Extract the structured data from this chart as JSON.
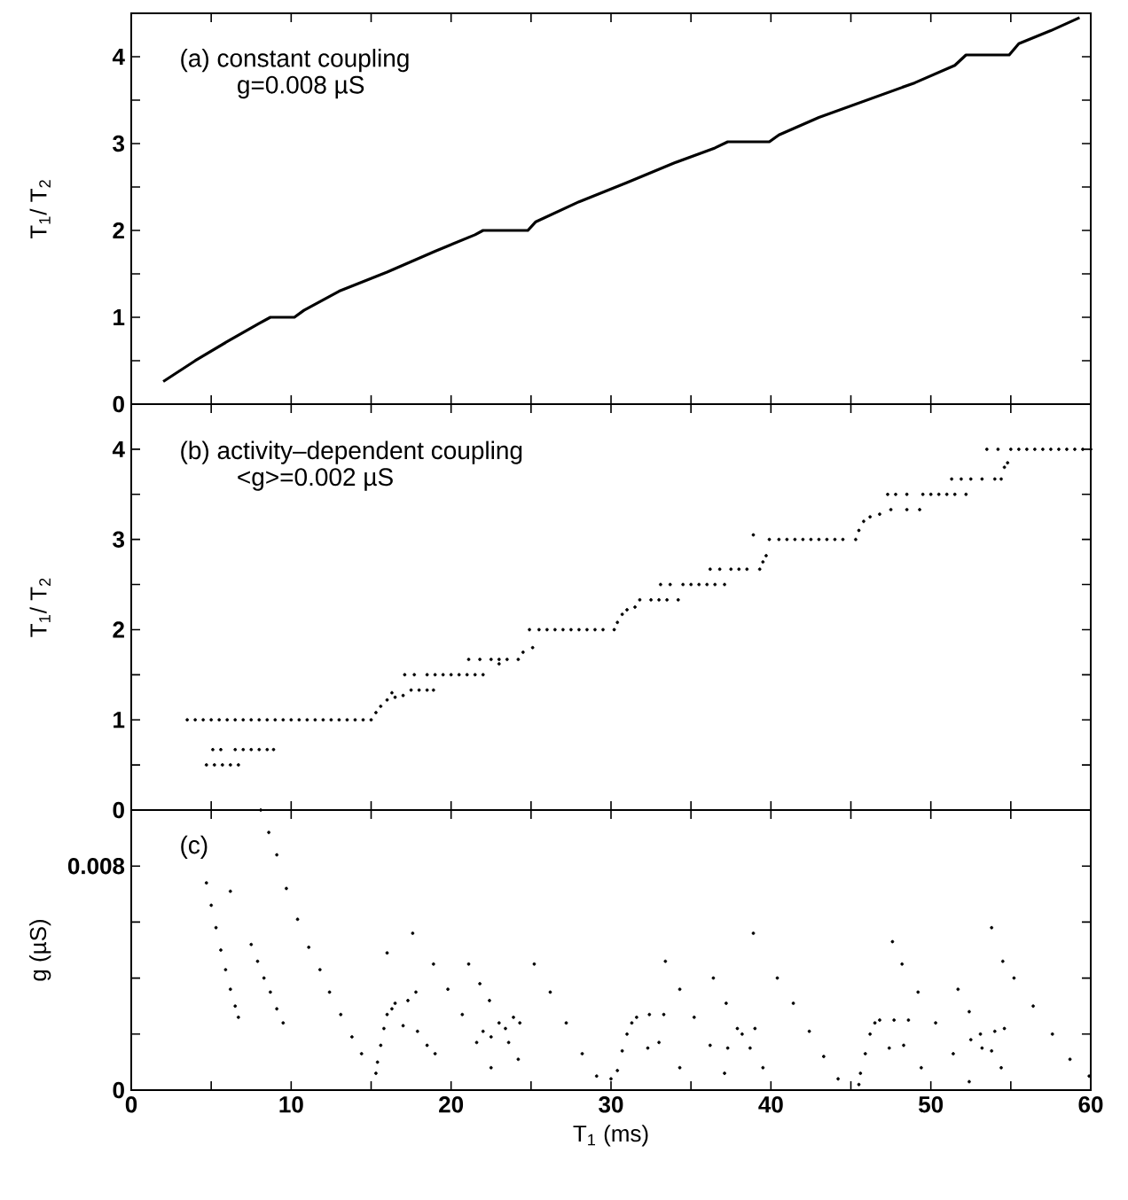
{
  "chart_data": [
    {
      "type": "line",
      "annotations": [
        "(a) constant coupling",
        "g=0.008 µS"
      ],
      "ylabel": "T$_{1}$/ T$_{2}$",
      "tick_labels": "y",
      "xlim": [
        0,
        60
      ],
      "xticks": [
        0,
        {
          "value": 5,
          "label": null
        },
        10,
        {
          "value": 15,
          "label": null
        },
        20,
        {
          "value": 25,
          "label": null
        },
        30,
        {
          "value": 35,
          "label": null
        },
        40,
        {
          "value": 45,
          "label": null
        },
        50,
        {
          "value": 55,
          "label": null
        },
        60
      ],
      "ylim": [
        0,
        4.5
      ],
      "yticks": [
        0,
        {
          "value": 0.5,
          "label": null
        },
        1,
        {
          "value": 1.5,
          "label": null
        },
        2,
        {
          "value": 2.5,
          "label": null
        },
        3,
        {
          "value": 3.5,
          "label": null
        },
        4
      ],
      "series": [
        {
          "color": "#000000",
          "x": [
            2,
            4,
            6,
            8,
            8.7,
            10.2,
            10.8,
            13,
            16,
            19,
            21.5,
            22,
            24.8,
            25.3,
            28,
            31,
            34,
            36.5,
            37.3,
            39.9,
            40.5,
            43,
            46,
            49,
            51.5,
            52.2,
            54.9,
            55.5,
            57.5,
            59.3
          ],
          "values": [
            0.26,
            0.5,
            0.72,
            0.93,
            1.0,
            1.0,
            1.08,
            1.3,
            1.52,
            1.76,
            1.95,
            2.0,
            2.0,
            2.1,
            2.33,
            2.55,
            2.78,
            2.95,
            3.02,
            3.02,
            3.1,
            3.3,
            3.5,
            3.7,
            3.9,
            4.02,
            4.02,
            4.15,
            4.3,
            4.45
          ]
        }
      ]
    },
    {
      "type": "scatter",
      "marker": "circle",
      "annotations": [
        "(b) activity–dependent coupling",
        "<g>=0.002 µS"
      ],
      "ylabel": "T$_{1}$/ T$_{2}$",
      "tick_labels": "y",
      "xlim": [
        0,
        60
      ],
      "xticks": [
        0,
        {
          "value": 5,
          "label": null
        },
        10,
        {
          "value": 15,
          "label": null
        },
        20,
        {
          "value": 25,
          "label": null
        },
        30,
        {
          "value": 35,
          "label": null
        },
        40,
        {
          "value": 45,
          "label": null
        },
        50,
        {
          "value": 55,
          "label": null
        },
        60
      ],
      "ylim": [
        0,
        4.5
      ],
      "yticks": [
        0,
        {
          "value": 0.5,
          "label": null
        },
        1,
        {
          "value": 1.5,
          "label": null
        },
        2,
        {
          "value": 2.5,
          "label": null
        },
        3,
        {
          "value": 3.5,
          "label": null
        },
        4
      ],
      "series": [
        {
          "color": "#000000",
          "x": [
            3.5,
            4.0,
            4.5,
            5.0,
            5.5,
            6.0,
            6.5,
            7.0,
            7.5,
            8.0,
            8.5,
            9.0,
            9.5,
            10.0,
            10.5,
            11.0,
            11.5,
            12.0,
            12.5,
            13.0,
            13.5,
            14.0,
            14.5,
            15.0,
            4.7,
            5.2,
            5.7,
            6.2,
            6.7,
            5.1,
            5.6,
            6.5,
            7.0,
            7.5,
            8.0,
            8.5,
            8.9,
            15.3,
            15.6,
            16.0,
            16.5,
            17.0,
            16.3,
            17.5,
            18.0,
            18.5,
            18.9,
            17.1,
            17.7,
            18.5,
            19,
            19.5,
            20,
            20.5,
            21,
            21.5,
            22.0,
            21.1,
            21.8,
            22.5,
            23,
            23.5,
            24.2,
            23.0,
            24.5,
            25.1,
            24.9,
            25.5,
            26,
            26.5,
            27,
            27.5,
            28,
            28.5,
            29,
            29.5,
            30.2,
            30.4,
            30.7,
            31.0,
            31.5,
            31.8,
            32.5,
            33,
            33.5,
            34.2,
            33.1,
            33.7,
            34.5,
            35,
            35.5,
            36,
            36.5,
            37.1,
            36.2,
            36.8,
            37.5,
            38,
            38.5,
            39.3,
            39.5,
            39.7,
            38.9,
            39.9,
            40.5,
            41,
            41.5,
            42,
            42.5,
            43,
            43.5,
            44,
            44.5,
            45.3,
            45.5,
            45.8,
            46.2,
            46.8,
            47.5,
            48.5,
            49.3,
            47.3,
            47.8,
            48.5,
            49.5,
            50,
            50.5,
            51,
            51.5,
            52.2,
            51.3,
            51.9,
            52.5,
            53.2,
            54,
            54.4,
            54.6,
            54.8,
            53.5,
            54.2,
            55,
            55.5,
            56,
            56.5,
            57,
            57.5,
            58,
            58.5,
            59,
            59.5,
            60
          ],
          "values": [
            1,
            1,
            1,
            1,
            1,
            1,
            1,
            1,
            1,
            1,
            1,
            1,
            1,
            1,
            1,
            1,
            1,
            1,
            1,
            1,
            1,
            1,
            1,
            1,
            0.5,
            0.5,
            0.5,
            0.5,
            0.5,
            0.67,
            0.67,
            0.67,
            0.67,
            0.67,
            0.67,
            0.67,
            0.67,
            1.08,
            1.15,
            1.22,
            1.25,
            1.27,
            1.3,
            1.33,
            1.33,
            1.33,
            1.33,
            1.5,
            1.5,
            1.5,
            1.5,
            1.5,
            1.5,
            1.5,
            1.5,
            1.5,
            1.5,
            1.67,
            1.67,
            1.67,
            1.67,
            1.67,
            1.67,
            1.62,
            1.75,
            1.8,
            2,
            2,
            2,
            2,
            2,
            2,
            2,
            2,
            2,
            2,
            2,
            2.08,
            2.17,
            2.22,
            2.25,
            2.33,
            2.33,
            2.33,
            2.33,
            2.33,
            2.5,
            2.5,
            2.5,
            2.5,
            2.5,
            2.5,
            2.5,
            2.5,
            2.67,
            2.67,
            2.67,
            2.67,
            2.67,
            2.67,
            2.75,
            2.82,
            3.05,
            3,
            3,
            3,
            3,
            3,
            3,
            3,
            3,
            3,
            3,
            3,
            3.1,
            3.2,
            3.25,
            3.28,
            3.33,
            3.33,
            3.33,
            3.5,
            3.5,
            3.5,
            3.5,
            3.5,
            3.5,
            3.5,
            3.5,
            3.5,
            3.67,
            3.67,
            3.67,
            3.67,
            3.67,
            3.67,
            3.8,
            3.85,
            4,
            4,
            4,
            4,
            4,
            4,
            4,
            4,
            4,
            4,
            4,
            4,
            4
          ]
        }
      ]
    },
    {
      "type": "scatter",
      "marker": "circle",
      "annotations": [
        "(c)"
      ],
      "ylabel": "g (µS)",
      "xlabel": "T$_{1}$ (ms)",
      "xlim": [
        0,
        60
      ],
      "xticks": [
        0,
        {
          "value": 5,
          "label": null
        },
        10,
        {
          "value": 15,
          "label": null
        },
        20,
        {
          "value": 25,
          "label": null
        },
        30,
        {
          "value": 35,
          "label": null
        },
        40,
        {
          "value": 45,
          "label": null
        },
        50,
        {
          "value": 55,
          "label": null
        },
        60
      ],
      "ylim": [
        0,
        0.01
      ],
      "yticks": [
        0,
        {
          "value": 0.002,
          "label": null
        },
        {
          "value": 0.004,
          "label": null
        },
        {
          "value": 0.006,
          "label": null
        },
        0.008
      ],
      "series": [
        {
          "color": "#000000",
          "x": [
            4.7,
            5.0,
            5.3,
            5.6,
            5.9,
            6.2,
            6.5,
            6.7,
            6.2,
            7.5,
            7.9,
            8.3,
            8.7,
            9.1,
            9.5,
            8.1,
            8.6,
            9.1,
            9.7,
            10.4,
            11.1,
            11.8,
            12.4,
            13.1,
            13.8,
            14.4,
            15.3,
            15.4,
            15.6,
            15.8,
            16.0,
            16.3,
            16.5,
            17.0,
            17.3,
            17.9,
            17.8,
            18.5,
            19.0,
            16.0,
            17.6,
            18.9,
            19.8,
            20.7,
            21.6,
            22.5,
            21.1,
            21.8,
            22.4,
            23.0,
            23.6,
            24.2,
            22.0,
            22.5,
            23.4,
            23.9,
            24.3,
            25.2,
            26.2,
            27.2,
            28.2,
            29.1,
            30.0,
            30.4,
            30.7,
            31.0,
            31.3,
            31.6,
            32.3,
            32.4,
            33.0,
            33.3,
            34.3,
            33.4,
            34.3,
            35.2,
            36.2,
            37.1,
            36.4,
            37.2,
            37.9,
            38.7,
            39.5,
            38.9,
            37.3,
            38.2,
            39.0,
            40.4,
            41.4,
            42.4,
            43.3,
            44.2,
            45.5,
            45.6,
            45.9,
            46.2,
            46.5,
            46.8,
            47.4,
            47.7,
            48.3,
            48.6,
            49.4,
            47.6,
            48.2,
            49.2,
            50.3,
            51.4,
            52.4,
            51.7,
            52.4,
            53.1,
            53.8,
            54.4,
            52.5,
            53.2,
            54.0,
            54.6,
            53.8,
            54.5,
            55.2,
            56.4,
            57.6,
            58.7,
            59.9
          ],
          "values": [
            0.0074,
            0.0066,
            0.0058,
            0.005,
            0.0043,
            0.0036,
            0.003,
            0.0026,
            0.0071,
            0.0052,
            0.0046,
            0.004,
            0.0035,
            0.0029,
            0.0024,
            0.01,
            0.0092,
            0.0084,
            0.0072,
            0.0061,
            0.0051,
            0.0043,
            0.0035,
            0.0027,
            0.0019,
            0.0013,
            0.0006,
            0.001,
            0.0016,
            0.0022,
            0.0027,
            0.0029,
            0.0031,
            0.0023,
            0.0032,
            0.0021,
            0.0035,
            0.0016,
            0.0013,
            0.0049,
            0.0056,
            0.0045,
            0.0036,
            0.0027,
            0.0017,
            0.0008,
            0.0045,
            0.0038,
            0.0032,
            0.0024,
            0.0017,
            0.0011,
            0.0021,
            0.0019,
            0.0022,
            0.0026,
            0.0024,
            0.0045,
            0.0035,
            0.0024,
            0.0013,
            0.0005,
            0.0004,
            0.0007,
            0.0014,
            0.002,
            0.0024,
            0.0026,
            0.0015,
            0.0027,
            0.0017,
            0.0027,
            0.0008,
            0.0046,
            0.0036,
            0.0026,
            0.0016,
            0.0006,
            0.004,
            0.0031,
            0.0022,
            0.0015,
            0.0008,
            0.0056,
            0.0015,
            0.002,
            0.0022,
            0.004,
            0.0031,
            0.0021,
            0.0012,
            0.0004,
            0.0002,
            0.0006,
            0.0013,
            0.002,
            0.0024,
            0.0025,
            0.0015,
            0.0025,
            0.0016,
            0.0025,
            0.0008,
            0.0053,
            0.0045,
            0.0035,
            0.0024,
            0.0013,
            0.0003,
            0.0036,
            0.0028,
            0.002,
            0.0014,
            0.0008,
            0.0018,
            0.0015,
            0.0021,
            0.0022,
            0.0058,
            0.0046,
            0.004,
            0.003,
            0.002,
            0.0011,
            0.0005
          ]
        }
      ]
    }
  ]
}
